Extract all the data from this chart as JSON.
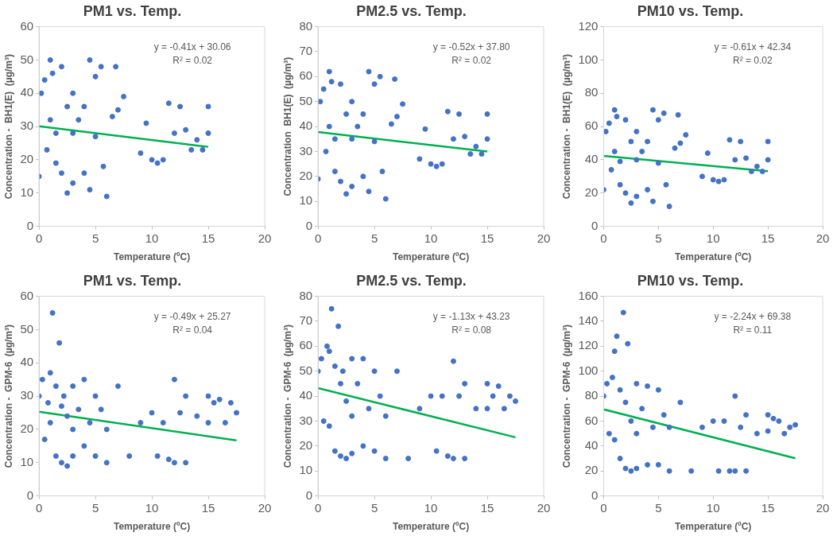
{
  "chart_data": [
    {
      "type": "scatter",
      "title": "PM1 vs. Temp.",
      "xlabel": "Temperature (ºC)",
      "ylabel": "Concentration -  BH1(E)  (µg/m³)",
      "xlim": [
        0,
        20
      ],
      "xticks": [
        0,
        5,
        10,
        15,
        20
      ],
      "ylim": [
        0,
        60
      ],
      "yticks": [
        0,
        10,
        20,
        30,
        40,
        50,
        60
      ],
      "marker": "circle",
      "annotations": [
        "y = -0.41x + 30.06",
        "R² = 0.02"
      ],
      "series": [
        {
          "color": "#4472c4",
          "x": [
            0,
            0.2,
            0.5,
            0.7,
            1,
            1,
            1.2,
            1.5,
            1.5,
            2,
            2,
            2.5,
            2.5,
            3,
            3,
            3,
            3.5,
            4,
            4,
            4.5,
            4.5,
            5,
            5,
            5.5,
            5.7,
            6,
            6.5,
            6.8,
            7,
            7.5,
            9,
            9.5,
            10,
            10.5,
            11,
            11.5,
            12,
            12.5,
            13,
            13.5,
            14,
            14.5,
            15,
            15
          ],
          "values": [
            15,
            40,
            44,
            23,
            50,
            32,
            46,
            28,
            19,
            48,
            16,
            36,
            10,
            40,
            28,
            13,
            32,
            36,
            16,
            11,
            50,
            45,
            27,
            48,
            18,
            9,
            33,
            48,
            35,
            39,
            22,
            31,
            20,
            19,
            20,
            37,
            28,
            36,
            29,
            23,
            26,
            23,
            36,
            28
          ]
        },
        {
          "type": "line",
          "marker": "none",
          "color": "#00b050",
          "x": [
            0,
            15
          ],
          "values": [
            30.1,
            23.9
          ]
        }
      ]
    },
    {
      "type": "scatter",
      "title": "PM2.5 vs. Temp.",
      "xlabel": "Temperature (ºC)",
      "ylabel": "Concentration  BH1(E)  (µg/m³)",
      "xlim": [
        0,
        20
      ],
      "xticks": [
        0,
        5,
        10,
        15,
        20
      ],
      "ylim": [
        0,
        80
      ],
      "yticks": [
        0,
        10,
        20,
        30,
        40,
        50,
        60,
        70,
        80
      ],
      "marker": "circle",
      "annotations": [
        "y = -0.52x + 37.80",
        "R² = 0.02"
      ],
      "series": [
        {
          "color": "#4472c4",
          "x": [
            0,
            0.2,
            0.5,
            0.7,
            1,
            1,
            1.2,
            1.5,
            1.5,
            2,
            2,
            2.5,
            2.5,
            3,
            3,
            3,
            3.5,
            4,
            4,
            4.5,
            4.5,
            5,
            5,
            5.5,
            5.7,
            6,
            6.5,
            6.8,
            7,
            7.5,
            9,
            9.5,
            10,
            10.5,
            11,
            11.5,
            12,
            12.5,
            13,
            13.5,
            14,
            14.5,
            15,
            15
          ],
          "values": [
            19,
            50,
            55,
            30,
            62,
            40,
            58,
            35,
            22,
            57,
            18,
            45,
            13,
            50,
            35,
            16,
            40,
            45,
            20,
            14,
            62,
            57,
            34,
            60,
            22,
            11,
            41,
            59,
            44,
            49,
            27,
            39,
            25,
            24,
            25,
            46,
            35,
            45,
            36,
            29,
            32,
            29,
            45,
            35
          ]
        },
        {
          "type": "line",
          "marker": "none",
          "color": "#00b050",
          "x": [
            0,
            15
          ],
          "values": [
            37.8,
            30.0
          ]
        }
      ]
    },
    {
      "type": "scatter",
      "title": "PM10 vs. Temp.",
      "xlabel": "Temperature (ºC)",
      "ylabel": "Concentration -  BH1(E)  (µg/m³)",
      "xlim": [
        0,
        20
      ],
      "xticks": [
        0,
        5,
        10,
        15,
        20
      ],
      "ylim": [
        0,
        120
      ],
      "yticks": [
        0,
        20,
        40,
        60,
        80,
        100,
        120
      ],
      "marker": "circle",
      "annotations": [
        "y = -0.61x + 42.34",
        "R² = 0.02"
      ],
      "series": [
        {
          "color": "#4472c4",
          "x": [
            0,
            0.2,
            0.5,
            0.7,
            1,
            1,
            1.2,
            1.5,
            1.5,
            2,
            2,
            2.5,
            2.5,
            3,
            3,
            3,
            3.5,
            4,
            4,
            4.5,
            4.5,
            5,
            5,
            5.5,
            5.7,
            6,
            6.5,
            6.8,
            7,
            7.5,
            9,
            9.5,
            10,
            10.5,
            11,
            11.5,
            12,
            12.5,
            13,
            13.5,
            14,
            14.5,
            15,
            15
          ],
          "values": [
            22,
            57,
            62,
            34,
            70,
            45,
            66,
            39,
            25,
            64,
            20,
            51,
            14,
            57,
            40,
            18,
            45,
            51,
            22,
            15,
            70,
            64,
            38,
            68,
            25,
            12,
            47,
            67,
            50,
            55,
            30,
            44,
            28,
            27,
            28,
            52,
            40,
            51,
            41,
            33,
            36,
            33,
            51,
            40
          ]
        },
        {
          "type": "line",
          "marker": "none",
          "color": "#00b050",
          "x": [
            0,
            15
          ],
          "values": [
            42.3,
            33.2
          ]
        }
      ]
    },
    {
      "type": "scatter",
      "title": "PM1 vs. Temp.",
      "xlabel": "Temperature (ºC)",
      "ylabel": "Concentration -  GPM-6  (µg/m³)",
      "xlim": [
        0,
        20
      ],
      "xticks": [
        0,
        5,
        10,
        15,
        20
      ],
      "ylim": [
        0,
        60
      ],
      "yticks": [
        0,
        10,
        20,
        30,
        40,
        50,
        60
      ],
      "marker": "circle",
      "annotations": [
        "y = -0.49x + 25.27",
        "R² = 0.04"
      ],
      "series": [
        {
          "color": "#4472c4",
          "x": [
            0,
            0.3,
            0.5,
            0.8,
            1,
            1,
            1.2,
            1.5,
            1.5,
            1.8,
            2,
            2,
            2.2,
            2.5,
            2.5,
            3,
            3,
            3,
            3.5,
            4,
            4,
            4.5,
            5,
            5,
            5.5,
            6,
            6,
            7,
            8,
            9,
            10,
            10.5,
            11,
            11.5,
            12,
            12,
            12.5,
            13,
            13,
            14,
            15,
            15,
            15.5,
            16,
            16.5,
            17,
            17.5
          ],
          "values": [
            30,
            35,
            17,
            28,
            37,
            22,
            55,
            33,
            12,
            46,
            27,
            10,
            30,
            24,
            9,
            33,
            20,
            12,
            26,
            35,
            15,
            22,
            30,
            12,
            26,
            20,
            10,
            33,
            12,
            22,
            25,
            12,
            22,
            11,
            35,
            10,
            25,
            30,
            10,
            24,
            30,
            22,
            28,
            29,
            22,
            28,
            25
          ]
        },
        {
          "type": "line",
          "marker": "none",
          "color": "#00b050",
          "x": [
            0,
            17.5
          ],
          "values": [
            25.3,
            16.7
          ]
        }
      ]
    },
    {
      "type": "scatter",
      "title": "PM2.5 vs. Temp.",
      "xlabel": "Temperature (ºC)",
      "ylabel": "Concentration -  GPM-6  (µg/m³)",
      "xlim": [
        0,
        20
      ],
      "xticks": [
        0,
        5,
        10,
        15,
        20
      ],
      "ylim": [
        0,
        80
      ],
      "yticks": [
        0,
        10,
        20,
        30,
        40,
        50,
        60,
        70,
        80
      ],
      "marker": "circle",
      "annotations": [
        "y = -1.13x + 43.23",
        "R² = 0.08"
      ],
      "series": [
        {
          "color": "#4472c4",
          "x": [
            0,
            0.3,
            0.5,
            0.8,
            1,
            1,
            1.2,
            1.5,
            1.5,
            1.8,
            2,
            2,
            2.2,
            2.5,
            2.5,
            3,
            3,
            3,
            3.5,
            4,
            4,
            4.5,
            5,
            5,
            5.5,
            6,
            6,
            7,
            8,
            9,
            10,
            10.5,
            11,
            11.5,
            12,
            12,
            12.5,
            13,
            13,
            14,
            15,
            15,
            15.5,
            16,
            16.5,
            17,
            17.5
          ],
          "values": [
            50,
            55,
            30,
            60,
            58,
            28,
            75,
            52,
            18,
            68,
            45,
            16,
            50,
            38,
            15,
            55,
            32,
            17,
            45,
            55,
            20,
            35,
            50,
            18,
            40,
            32,
            15,
            50,
            15,
            35,
            40,
            18,
            40,
            16,
            54,
            15,
            40,
            45,
            15,
            35,
            45,
            35,
            40,
            44,
            35,
            40,
            38
          ]
        },
        {
          "type": "line",
          "marker": "none",
          "color": "#00b050",
          "x": [
            0,
            17.5
          ],
          "values": [
            43.2,
            23.5
          ]
        }
      ]
    },
    {
      "type": "scatter",
      "title": "PM10 vs. Temp.",
      "xlabel": "Temperature (ºC)",
      "ylabel": "Concentration -  GPM-6  (µg/m³)",
      "xlim": [
        0,
        20
      ],
      "xticks": [
        0,
        5,
        10,
        15,
        20
      ],
      "ylim": [
        0,
        160
      ],
      "yticks": [
        0,
        20,
        40,
        60,
        80,
        100,
        120,
        140,
        160
      ],
      "marker": "circle",
      "annotations": [
        "y = -2.24x + 69.38",
        "R² = 0.11"
      ],
      "series": [
        {
          "color": "#4472c4",
          "x": [
            0,
            0.3,
            0.5,
            0.8,
            1,
            1,
            1.2,
            1.5,
            1.5,
            1.8,
            2,
            2,
            2.2,
            2.5,
            2.5,
            3,
            3,
            3,
            3.5,
            4,
            4,
            4.5,
            5,
            5,
            5.5,
            6,
            6,
            7,
            8,
            9,
            10,
            10.5,
            11,
            11.5,
            12,
            12,
            12.5,
            13,
            13,
            14,
            15,
            15,
            15.5,
            16,
            16.5,
            17,
            17.5
          ],
          "values": [
            80,
            90,
            50,
            95,
            116,
            45,
            128,
            85,
            30,
            147,
            75,
            22,
            122,
            60,
            20,
            90,
            50,
            22,
            70,
            88,
            25,
            55,
            85,
            25,
            65,
            55,
            20,
            75,
            20,
            55,
            60,
            20,
            60,
            20,
            80,
            20,
            55,
            65,
            20,
            50,
            65,
            52,
            62,
            60,
            50,
            55,
            57
          ]
        },
        {
          "type": "line",
          "marker": "none",
          "color": "#00b050",
          "x": [
            0,
            17.5
          ],
          "values": [
            69.4,
            30.2
          ]
        }
      ]
    }
  ]
}
